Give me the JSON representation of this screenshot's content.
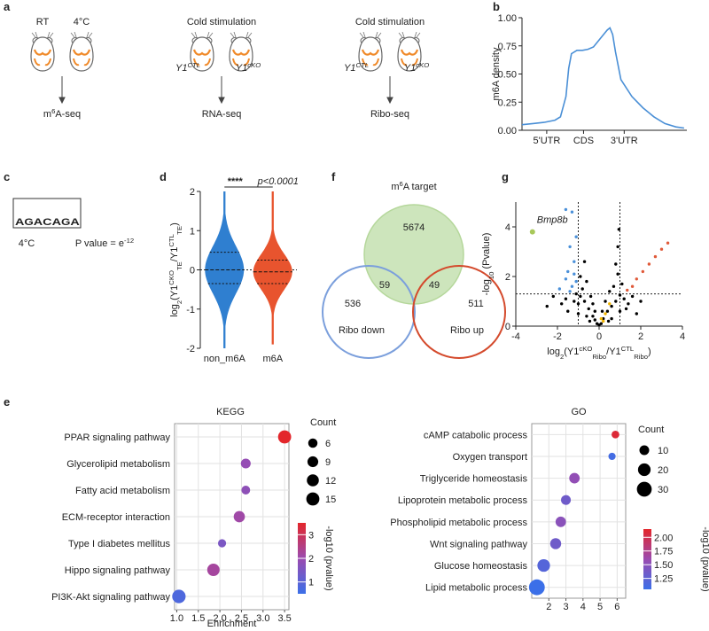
{
  "panel_labels": [
    "a",
    "b",
    "c",
    "d",
    "e",
    "f",
    "g"
  ],
  "panel_a": {
    "headers": [
      "RT",
      "4°C",
      "Cold stimulation",
      "Cold stimulation"
    ],
    "genotypes": [
      [
        {
          "text": "Y1"
        },
        {
          "text": "CTL",
          "pos": "sup"
        }
      ],
      [
        {
          "text": "Y1"
        },
        {
          "text": "cKO",
          "pos": "sup"
        }
      ],
      [
        {
          "text": "Y1"
        },
        {
          "text": "CTL",
          "pos": "sup"
        }
      ],
      [
        {
          "text": "Y1"
        },
        {
          "text": "cKO",
          "pos": "sup"
        }
      ]
    ],
    "assays": [
      [
        {
          "text": "m"
        },
        {
          "text": "6",
          "pos": "sup"
        },
        {
          "text": "A-seq"
        }
      ],
      [
        {
          "text": "RNA-seq"
        }
      ],
      [
        {
          "text": "Ribo-seq"
        }
      ]
    ]
  },
  "panel_c": {
    "letters": [
      {
        "text": "A",
        "color": "#3cb34a"
      },
      {
        "text": "G",
        "color": "#f5a623"
      },
      {
        "text": "A",
        "color": "#3cb34a"
      },
      {
        "text": "C",
        "color": "#2d6cd1"
      },
      {
        "text": "A",
        "color": "#3cb34a"
      },
      {
        "text": "G",
        "color": "#f5a623"
      },
      {
        "text": "A",
        "color": "#3cb34a"
      }
    ],
    "condition": "4°C",
    "p_value": [
      {
        "text": "P value = e"
      },
      {
        "text": "-12",
        "pos": "sup"
      }
    ]
  },
  "panel_f": {
    "title": [
      {
        "text": "m"
      },
      {
        "text": "6",
        "pos": "sup"
      },
      {
        "text": "A target"
      }
    ],
    "counts": [
      5674,
      59,
      49,
      536,
      511
    ],
    "set_labels": [
      "Ribo down",
      "Ribo up"
    ],
    "colors": [
      "#cde5bc",
      "#7b9fdc",
      "#d44a2c"
    ]
  },
  "chart_data": [
    {
      "type": "line",
      "y_label": "m6A density",
      "x": [
        0,
        0.2,
        0.4,
        0.6,
        0.7,
        0.8,
        0.85,
        0.9,
        1.0,
        1.1,
        1.2,
        1.3,
        1.4,
        1.5,
        1.55,
        1.6,
        1.65,
        1.7,
        1.8,
        2.0,
        2.2,
        2.4,
        2.6,
        2.8,
        2.95
      ],
      "values": [
        0.05,
        0.06,
        0.07,
        0.09,
        0.12,
        0.3,
        0.55,
        0.68,
        0.71,
        0.71,
        0.72,
        0.74,
        0.8,
        0.86,
        0.89,
        0.91,
        0.85,
        0.7,
        0.45,
        0.3,
        0.2,
        0.12,
        0.06,
        0.03,
        0.02
      ],
      "color": "#4a8fd6",
      "xlim": [
        0,
        3
      ],
      "xticks": [
        {
          "value": 0.45,
          "label": "5'UTR"
        },
        {
          "value": 1.12,
          "label": "CDS"
        },
        {
          "value": 1.86,
          "label": "3'UTR"
        }
      ],
      "ylim": [
        0,
        1
      ],
      "yticks": [
        {
          "value": 0,
          "label": "0.00"
        },
        {
          "value": 0.25,
          "label": "0.25"
        },
        {
          "value": 0.5,
          "label": "0.50"
        },
        {
          "value": 0.75,
          "label": "0.75"
        },
        {
          "value": 1,
          "label": "1.00"
        }
      ]
    },
    {
      "type": "violin",
      "y_label": [
        {
          "text": "log"
        },
        {
          "text": "2",
          "pos": "sub"
        },
        {
          "text": "(Y1"
        },
        {
          "text": "CKO",
          "pos": "sup"
        },
        {
          "text": "TE",
          "pos": "sub"
        },
        {
          "text": "/Y1"
        },
        {
          "text": "CTL",
          "pos": "sup"
        },
        {
          "text": "TE",
          "pos": "sub"
        },
        {
          "text": ")"
        }
      ],
      "categories": [
        "non_m6A",
        "m6A"
      ],
      "colors": [
        "#2f7fd0",
        "#e8542e"
      ],
      "stats": [
        {
          "min": -2,
          "q1": -0.35,
          "median": 0,
          "q3": 0.45,
          "max": 2
        },
        {
          "min": -1.9,
          "q1": -0.35,
          "median": -0.05,
          "q3": 0.25,
          "max": 2
        }
      ],
      "significance": "****",
      "significance_color": "#d9302a",
      "p_text": "p<0.0001",
      "ylim": [
        -2,
        2
      ],
      "yticks": [
        -2,
        -1,
        0,
        1,
        2
      ]
    },
    {
      "type": "scatter",
      "x_label": [
        {
          "text": "log"
        },
        {
          "text": "2",
          "pos": "sub"
        },
        {
          "text": "(Y1"
        },
        {
          "text": "cKO",
          "pos": "sup"
        },
        {
          "text": "Ribo",
          "pos": "sub"
        },
        {
          "text": "/Y1"
        },
        {
          "text": "CTL",
          "pos": "sup"
        },
        {
          "text": "Ribo",
          "pos": "sub"
        },
        {
          "text": ")"
        }
      ],
      "y_label": [
        {
          "text": "-log"
        },
        {
          "text": "10",
          "pos": "sub"
        },
        {
          "text": " (Pvalue)"
        }
      ],
      "series": [
        {
          "color": "#000000",
          "x": [
            -0.9,
            -0.7,
            -0.5,
            -0.3,
            -0.2,
            -0.1,
            0.1,
            0.2,
            0.4,
            0.6,
            0.8,
            1.0,
            -1.2,
            -1.0,
            -0.8,
            -0.6,
            -0.4,
            -0.9,
            0.5,
            0.7,
            0.9,
            0.3,
            1.2,
            1.4,
            1.6,
            -1.6,
            -1.8,
            -2.2,
            -1.5,
            -0.6,
            0.6,
            1.0,
            -1.0,
            0.0,
            0.8,
            0.95,
            0.9,
            -0.7,
            1.1,
            -0.3,
            0.15,
            -1.1,
            1.3,
            2.0,
            -0.2,
            0.45,
            -0.45,
            1.8,
            -2.5
          ],
          "values": [
            1.2,
            1.0,
            0.7,
            0.4,
            0.25,
            0.1,
            0.1,
            0.3,
            0.6,
            0.8,
            1.0,
            1.25,
            1.0,
            0.9,
            1.5,
            1.8,
            1.2,
            2.0,
            1.4,
            1.6,
            2.1,
            1.0,
            1.1,
            0.9,
            1.2,
            1.1,
            0.9,
            1.2,
            0.6,
            0.4,
            0.3,
            0.6,
            0.5,
            0.05,
            2.5,
            3.9,
            3.2,
            2.6,
            1.7,
            0.9,
            0.6,
            1.3,
            0.7,
            1.0,
            0.6,
            0.2,
            0.2,
            0.5,
            0.8
          ]
        },
        {
          "color": "#4a90d9",
          "x": [
            -1.6,
            -1.3,
            -1.1,
            -1.4,
            -1.2,
            -1.5,
            -1.9,
            -1.3,
            -1.1,
            -1.6,
            -1.4,
            -1.2
          ],
          "values": [
            4.7,
            4.6,
            3.6,
            3.2,
            2.6,
            2.2,
            1.5,
            1.6,
            1.8,
            1.9,
            1.4,
            2.1
          ]
        },
        {
          "color": "#e05a3a",
          "x": [
            3.3,
            3.0,
            2.7,
            2.4,
            2.1,
            1.8,
            1.6,
            1.35
          ],
          "values": [
            3.35,
            3.1,
            2.8,
            2.5,
            2.2,
            1.9,
            1.6,
            1.45
          ]
        },
        {
          "color": "#f0b400",
          "x": [
            0.1,
            0.3,
            0.5,
            0.2
          ],
          "values": [
            0.3,
            0.5,
            0.9,
            0.2
          ]
        },
        {
          "color": "#a8c85a",
          "label": "Bmp8b",
          "x": [
            -3.2
          ],
          "values": [
            3.8
          ]
        }
      ],
      "thresholds": {
        "x": [
          -1,
          1
        ],
        "y": 1.3
      },
      "xlim": [
        -4,
        4
      ],
      "xticks": [
        -4,
        -2,
        0,
        2,
        4
      ],
      "ylim": [
        0,
        5
      ],
      "yticks": [
        0,
        2,
        4
      ]
    },
    {
      "type": "bubble",
      "title": "KEGG",
      "x_label": "Enrichment",
      "categories": [
        "PPAR signaling pathway",
        "Glycerolipid metabolism",
        "Fatty acid metabolism",
        "ECM-receptor interaction",
        "Type I diabetes mellitus",
        "Hippo signaling pathway",
        "PI3K-Akt signaling pathway"
      ],
      "values": [
        3.5,
        2.6,
        2.6,
        2.45,
        2.05,
        1.85,
        1.05
      ],
      "sizes": [
        15,
        7,
        5,
        10,
        4,
        13,
        16
      ],
      "color_values": [
        3.5,
        1.9,
        1.8,
        2.1,
        1.5,
        2.2,
        0.8
      ],
      "xlim": [
        0.95,
        3.6
      ],
      "xticks": [
        {
          "value": 1,
          "label": "1.0"
        },
        {
          "value": 1.5,
          "label": "1.5"
        },
        {
          "value": 2,
          "label": "2.0"
        },
        {
          "value": 2.5,
          "label": "2.5"
        },
        {
          "value": 3,
          "label": "3.0"
        },
        {
          "value": 3.5,
          "label": "3.5"
        }
      ],
      "size_legend": {
        "title": "Count",
        "values": [
          6,
          9,
          12,
          15
        ]
      },
      "colorbar": {
        "title": "-log10 (pvalue)",
        "lim": [
          0.5,
          3.5
        ],
        "ticks": [
          1,
          2,
          3
        ],
        "colors": [
          "#3b6fe8",
          "#9b4bb0",
          "#e3262b"
        ]
      }
    },
    {
      "type": "bubble",
      "title": "GO",
      "categories": [
        "cAMP catabolic process",
        "Oxygen transport",
        "Triglyceride homeostasis",
        "Lipoprotein metabolic process",
        "Phospholipid metabolic process",
        "Wnt signaling pathway",
        "Glucose homeostasis",
        "Lipid metabolic process"
      ],
      "values": [
        5.9,
        5.7,
        3.5,
        3.0,
        2.7,
        2.4,
        1.7,
        1.3
      ],
      "sizes": [
        5,
        4,
        12,
        10,
        12,
        14,
        20,
        35
      ],
      "color_values": [
        2.1,
        1.1,
        1.55,
        1.35,
        1.5,
        1.35,
        1.2,
        1.05
      ],
      "xlim": [
        1,
        6.5
      ],
      "xticks": [
        2,
        3,
        4,
        5,
        6
      ],
      "size_legend": {
        "title": "Count",
        "values": [
          10,
          20,
          30
        ]
      },
      "colorbar": {
        "title": "-log10 (pvalue)",
        "lim": [
          1.05,
          2.15
        ],
        "ticks": [
          1.25,
          {
            "value": 1.5,
            "label": "1.50"
          },
          1.75,
          {
            "value": 2,
            "label": "2.00"
          }
        ],
        "colors": [
          "#3b6fe8",
          "#9b4bb0",
          "#e3262b"
        ]
      }
    }
  ]
}
